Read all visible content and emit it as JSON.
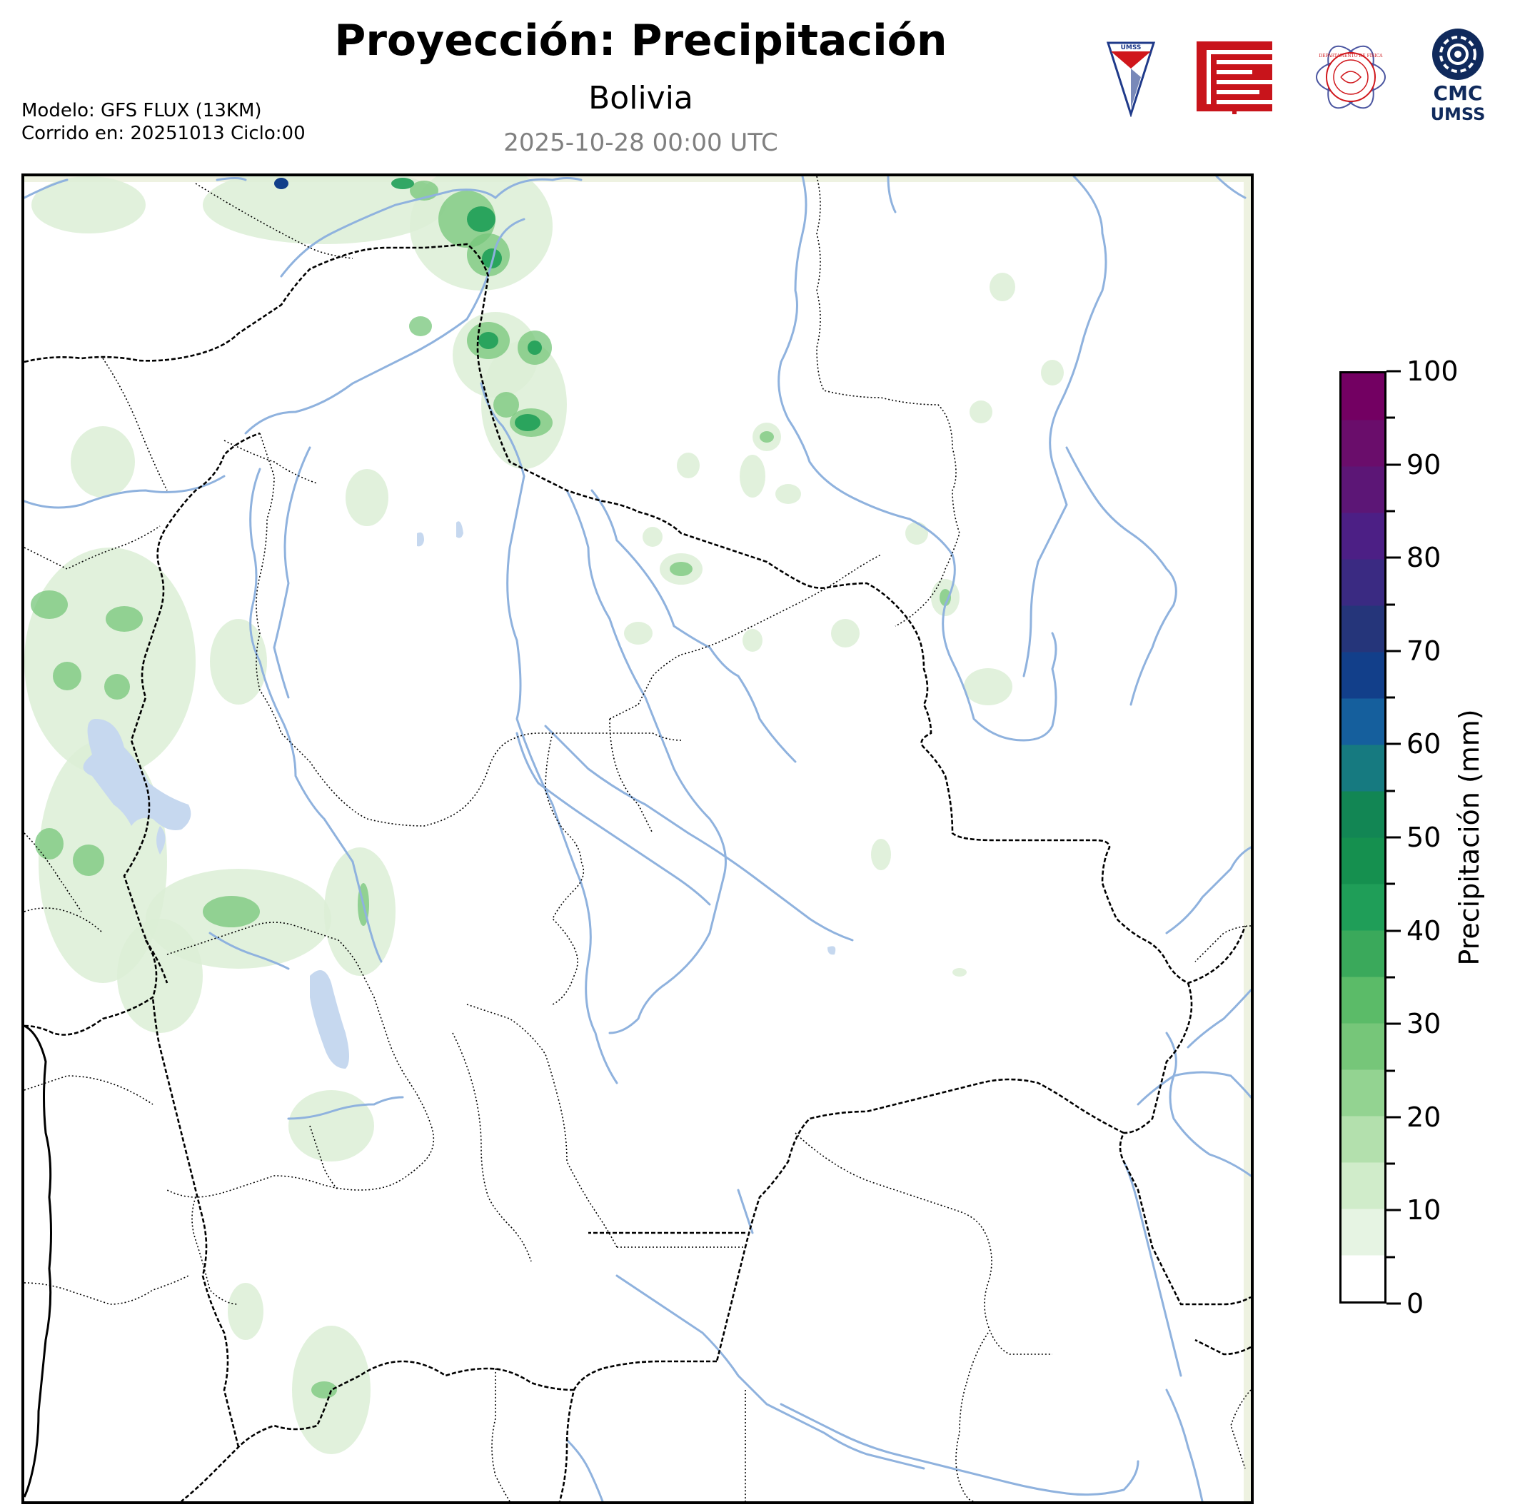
{
  "header": {
    "title": "Proyección: Precipitación",
    "subtitle": "Bolivia",
    "valid_time": "2025-10-28 00:00 UTC",
    "model_line": "Modelo: GFS FLUX (13KM)",
    "run_line": "Corrido en: 20251013 Ciclo:00"
  },
  "logos": [
    {
      "name": "umss-shield-logo",
      "text": "UMSS"
    },
    {
      "name": "red-emblem-logo",
      "text": ""
    },
    {
      "name": "departamento-fisica-seal-logo",
      "text": "DEPARTAMENTO DE FÍSICA"
    },
    {
      "name": "cmc-umss-logo",
      "text_top": "CMC",
      "text_bottom": "UMSS"
    }
  ],
  "colorbar": {
    "label": "Precipitación (mm)",
    "min": 0,
    "max": 100,
    "step": 5,
    "tick_labels": [
      "0",
      "10",
      "20",
      "30",
      "40",
      "50",
      "60",
      "70",
      "80",
      "90",
      "100"
    ],
    "colors": [
      "#ffffff",
      "#e6f4e3",
      "#d0ecca",
      "#b3e0ad",
      "#93d391",
      "#76c679",
      "#5bbb68",
      "#3aa95b",
      "#1f9e58",
      "#15904f",
      "#128654",
      "#167a80",
      "#155f9d",
      "#123f8a",
      "#25357a",
      "#3a2a82",
      "#4c1f85",
      "#5c1676",
      "#6a0d6b",
      "#730062"
    ]
  },
  "map": {
    "colors": {
      "river": "#8fb2de",
      "lake": "#c6d8ef",
      "border": "#000000",
      "precip_light": "#dcefd6",
      "precip_mid": "#76c679",
      "precip_heavy": "#1f9e58",
      "precip_max": "#123f8a"
    }
  }
}
